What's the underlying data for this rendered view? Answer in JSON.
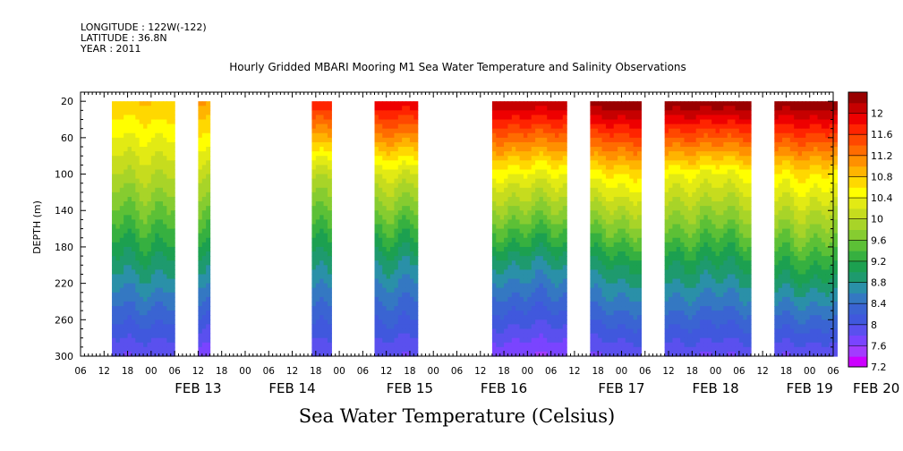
{
  "header": {
    "longitude": "LONGITUDE : 122W(-122)",
    "latitude": "LATITUDE : 36.8N",
    "year": "YEAR : 2011"
  },
  "chart_data": {
    "type": "heatmap",
    "title": "Hourly Gridded MBARI Mooring M1 Sea Water Temperature and Salinity Observations",
    "bottom_title": "Sea Water Temperature (Celsius)",
    "ylabel": "DEPTH (m)",
    "xlabel": "",
    "y_ticks": [
      20,
      60,
      100,
      140,
      180,
      220,
      260,
      300
    ],
    "ylim": [
      10,
      300
    ],
    "y_inverted": true,
    "x_unit": "hours since 2011-02-12 06:00",
    "xlim": [
      0,
      192
    ],
    "x_hour_labels": [
      "06",
      "12",
      "18",
      "00",
      "06",
      "12",
      "18",
      "00",
      "06",
      "12",
      "18",
      "00",
      "06",
      "12",
      "18",
      "00",
      "06",
      "12",
      "18",
      "00",
      "06",
      "12",
      "18",
      "00",
      "06",
      "12",
      "18",
      "00",
      "06",
      "12",
      "18",
      "00",
      "06"
    ],
    "x_hour_ticks": [
      0,
      6,
      12,
      18,
      24,
      30,
      36,
      42,
      48,
      54,
      60,
      66,
      72,
      78,
      84,
      90,
      96,
      102,
      108,
      114,
      120,
      126,
      132,
      138,
      144,
      150,
      156,
      162,
      168,
      174,
      180,
      186,
      192
    ],
    "x_date_labels": [
      {
        "label": "FEB 13",
        "x": 30
      },
      {
        "label": "FEB 14",
        "x": 54
      },
      {
        "label": "FEB 15",
        "x": 84
      },
      {
        "label": "FEB 16",
        "x": 108
      },
      {
        "label": "FEB 17",
        "x": 138
      },
      {
        "label": "FEB 18",
        "x": 162
      },
      {
        "label": "FEB 19",
        "x": 186
      },
      {
        "label": "FEB 20",
        "x": 203
      }
    ],
    "data_segments": [
      {
        "x_start": 8,
        "x_end": 24,
        "surface_temp": 10.6,
        "temp_at_100m": 9.8,
        "temp_at_200m": 8.7,
        "bottom_temp": 7.6
      },
      {
        "x_start": 30,
        "x_end": 33,
        "surface_temp": 10.8,
        "temp_at_100m": 9.8,
        "temp_at_200m": 8.6,
        "bottom_temp": 7.4
      },
      {
        "x_start": 59,
        "x_end": 64,
        "surface_temp": 11.6,
        "temp_at_100m": 9.8,
        "temp_at_200m": 8.6,
        "bottom_temp": 7.6
      },
      {
        "x_start": 75,
        "x_end": 86,
        "surface_temp": 11.8,
        "temp_at_100m": 10.0,
        "temp_at_200m": 8.6,
        "bottom_temp": 7.6
      },
      {
        "x_start": 105,
        "x_end": 124,
        "surface_temp": 12.0,
        "temp_at_100m": 10.2,
        "temp_at_200m": 8.6,
        "bottom_temp": 7.4
      },
      {
        "x_start": 130,
        "x_end": 143,
        "surface_temp": 12.2,
        "temp_at_100m": 10.4,
        "temp_at_200m": 8.8,
        "bottom_temp": 7.6
      },
      {
        "x_start": 149,
        "x_end": 171,
        "surface_temp": 12.2,
        "temp_at_100m": 10.2,
        "temp_at_200m": 8.8,
        "bottom_temp": 7.6
      },
      {
        "x_start": 177,
        "x_end": 193,
        "surface_temp": 12.2,
        "temp_at_100m": 10.4,
        "temp_at_200m": 9.0,
        "bottom_temp": 7.6
      }
    ],
    "colorbar": {
      "labels": [
        "12",
        "11.6",
        "11.2",
        "10.8",
        "10.4",
        "10",
        "9.6",
        "9.2",
        "8.8",
        "8.4",
        "8",
        "7.6",
        "7.2"
      ],
      "levels": [
        7.2,
        7.4,
        7.6,
        7.8,
        8.0,
        8.2,
        8.4,
        8.6,
        8.8,
        9.0,
        9.2,
        9.4,
        9.6,
        9.8,
        10.0,
        10.2,
        10.4,
        10.6,
        10.8,
        11.0,
        11.2,
        11.4,
        11.6,
        11.8,
        12.0,
        12.2
      ],
      "colors": [
        "#cc00ff",
        "#a23cff",
        "#7a44ff",
        "#5a50ee",
        "#4058dd",
        "#3a64d2",
        "#3478c2",
        "#2a90a8",
        "#1e9a6e",
        "#1ca050",
        "#36b040",
        "#5cc036",
        "#86cc30",
        "#a8d428",
        "#c6dc1e",
        "#e2ea14",
        "#ffff00",
        "#ffd800",
        "#ffb400",
        "#ff9000",
        "#ff6c00",
        "#ff4800",
        "#ff2400",
        "#ee0000",
        "#c60000",
        "#990000"
      ]
    }
  }
}
